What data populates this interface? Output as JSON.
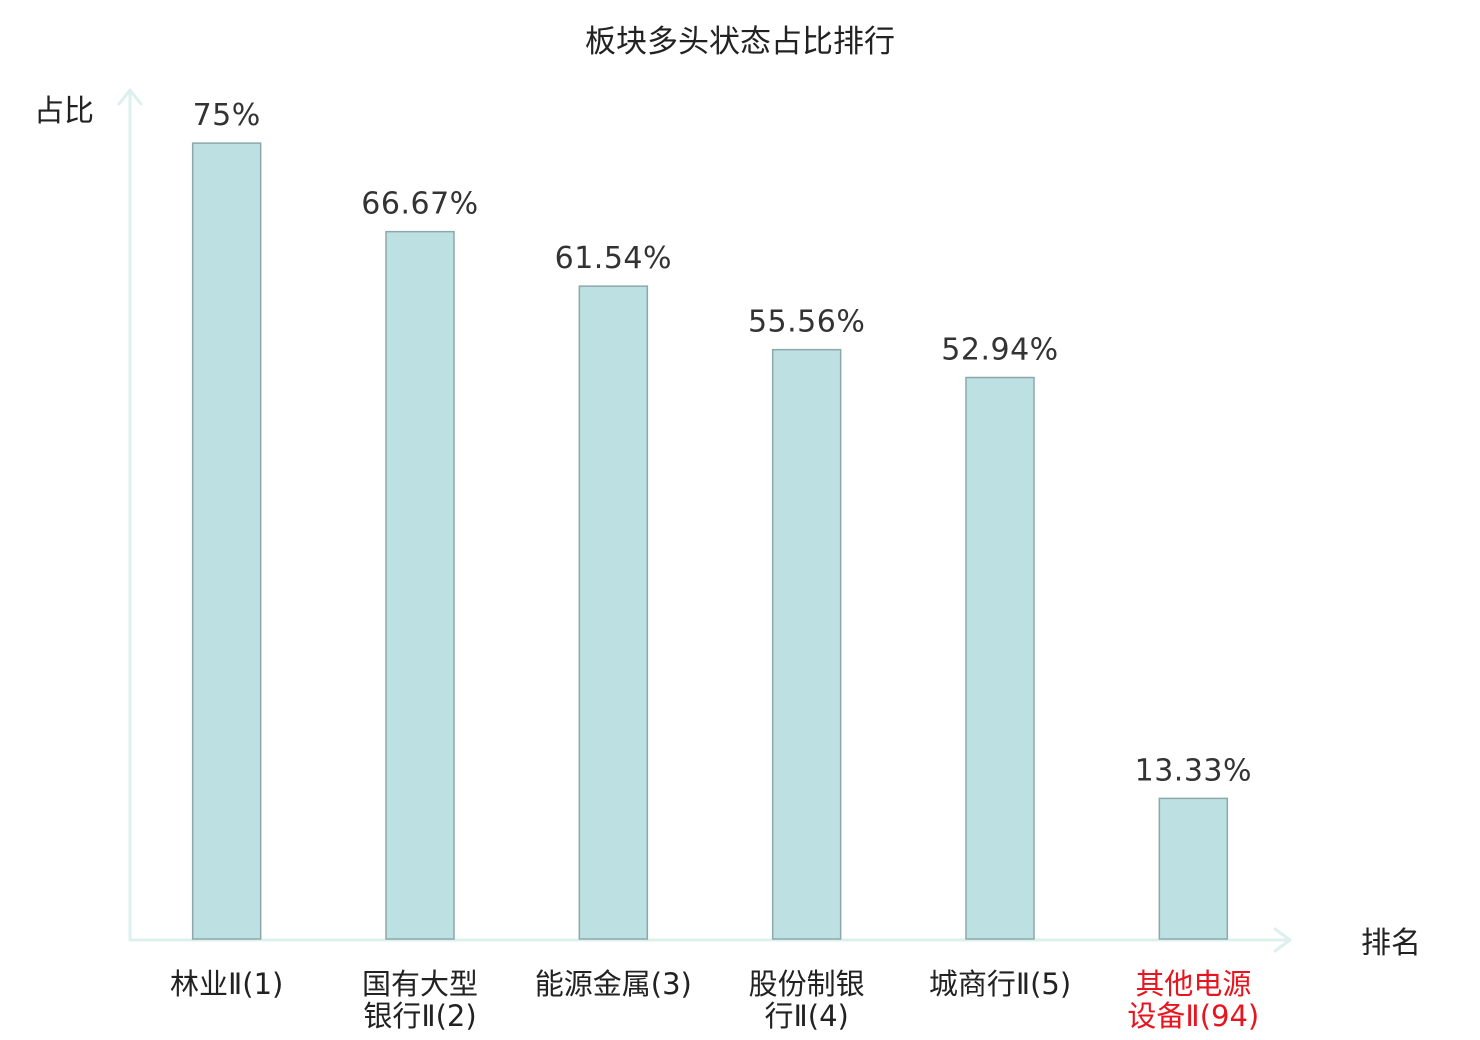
{
  "chart_data": {
    "type": "bar",
    "title": "板块多头状态占比排行",
    "ylabel": "占比",
    "xlabel": "排名",
    "categories": [
      "林业Ⅱ(1)",
      "国有大型银行Ⅱ(2)",
      "能源金属(3)",
      "股份制银行Ⅱ(4)",
      "城商行Ⅱ(5)",
      "其他电源设备Ⅱ(94)"
    ],
    "values": [
      75,
      66.67,
      61.54,
      55.56,
      52.94,
      13.33
    ],
    "value_labels": [
      "75%",
      "66.67%",
      "61.54%",
      "55.56%",
      "52.94%",
      "13.33%"
    ],
    "ylim": [
      0,
      80
    ],
    "grid": false,
    "legend": "none",
    "highlight_index": 5,
    "colors": {
      "bar_fill": "#bde0e3",
      "bar_stroke": "#8da8aa",
      "axis": "#dcf0ed",
      "tick_label": "#222222",
      "highlight_label": "#e8141e",
      "value_label": "#333333"
    }
  }
}
